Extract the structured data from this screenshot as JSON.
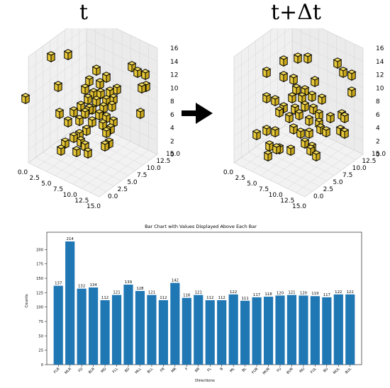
{
  "top_figure": {
    "left_label": "t",
    "right_label": "t+Δt",
    "axis_ticks": {
      "xy": [
        "0.0",
        "2.5",
        "5.0",
        "7.5",
        "10.0",
        "12.5",
        "15.0"
      ],
      "z": [
        "0",
        "2",
        "4",
        "6",
        "8",
        "10",
        "12",
        "14",
        "16"
      ]
    },
    "cube_color": "#e8c93a"
  },
  "chart_data": {
    "type": "bar",
    "title": "Bar Chart with Values Displayed Above Each Bar",
    "xlabel": "Directions",
    "ylabel": "Counts",
    "ylim": [
      0,
      230
    ],
    "yticks": [
      0,
      25,
      50,
      75,
      100,
      125,
      150,
      175,
      200
    ],
    "categories": [
      "FLR",
      "MLR",
      "FD",
      "BLR",
      "MD",
      "FLL",
      "BD",
      "MLL",
      "BLL",
      "FR",
      "MR",
      "F",
      "BR",
      "FL",
      "B",
      "ML",
      "BL",
      "FUR",
      "MUR",
      "FU",
      "BUR",
      "MU",
      "FUL",
      "BU",
      "MUL",
      "BUL"
    ],
    "values": [
      137,
      214,
      132,
      134,
      112,
      121,
      139,
      128,
      121,
      112,
      142,
      116,
      121,
      112,
      112,
      122,
      111,
      117,
      118,
      120,
      121,
      120,
      119,
      117,
      122,
      122
    ],
    "bar_color": "#1f77b4"
  }
}
